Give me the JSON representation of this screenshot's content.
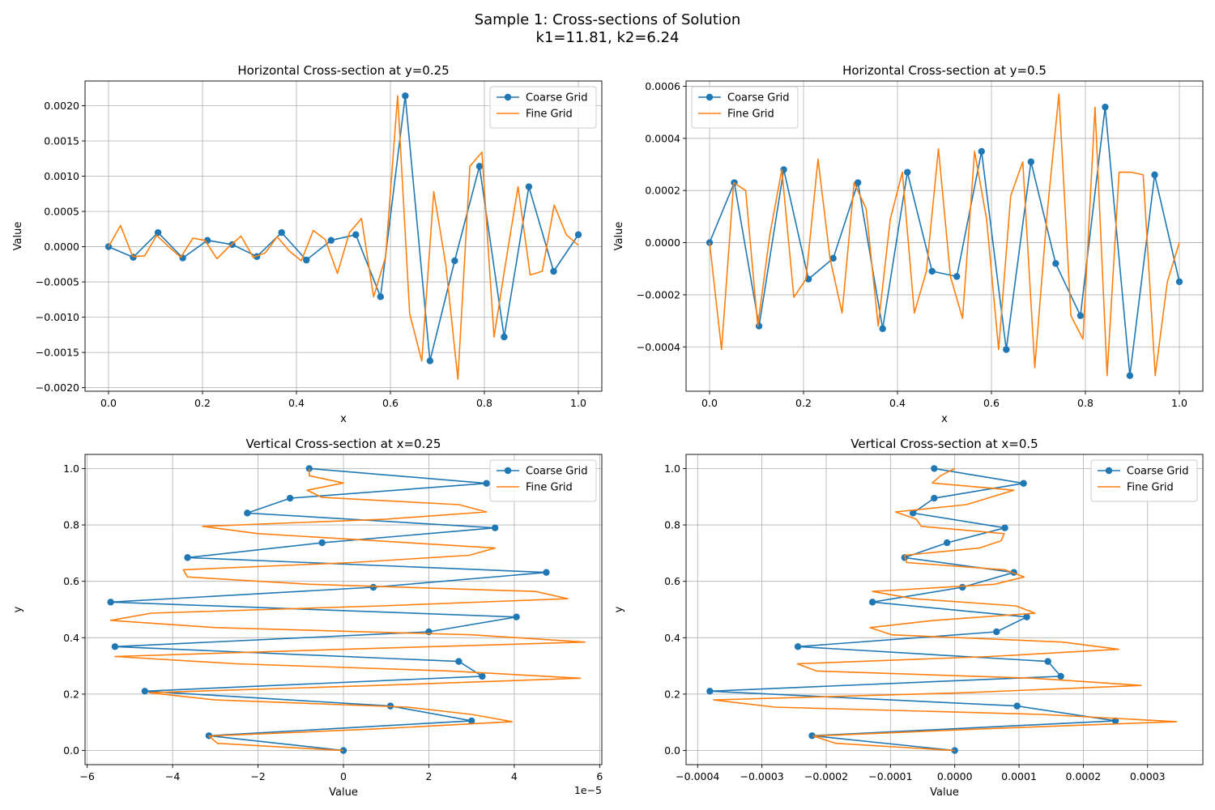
{
  "figure": {
    "title_line1": "Sample 1: Cross-sections of Solution",
    "title_line2": "k1=11.81, k2=6.24",
    "colors": {
      "coarse": "#1f77b4",
      "fine": "#ff7f0e",
      "grid": "#b0b0b0"
    }
  },
  "chart_data": [
    {
      "type": "line",
      "title": "Horizontal Cross-section at y=0.25",
      "xlabel": "x",
      "ylabel": "Value",
      "orientation": "horizontal",
      "xlim": [
        -0.05,
        1.05
      ],
      "ylim": [
        -0.00205,
        0.00235
      ],
      "xticks": [
        0.0,
        0.2,
        0.4,
        0.6,
        0.8,
        1.0
      ],
      "xtick_labels": [
        "0.0",
        "0.2",
        "0.4",
        "0.6",
        "0.8",
        "1.0"
      ],
      "yticks": [
        -0.002,
        -0.0015,
        -0.001,
        -0.0005,
        0.0,
        0.0005,
        0.001,
        0.0015,
        0.002
      ],
      "ytick_labels": [
        "−0.0020",
        "−0.0015",
        "−0.0010",
        "−0.0005",
        "0.0000",
        "0.0005",
        "0.0010",
        "0.0015",
        "0.0020"
      ],
      "axis_multiplier": "",
      "grid": true,
      "legend_position": "upper right",
      "series": [
        {
          "name": "Coarse Grid",
          "color": "#1f77b4",
          "marker": "o",
          "x": [
            0.0,
            0.0526,
            0.1053,
            0.1579,
            0.2105,
            0.2632,
            0.3158,
            0.3684,
            0.4211,
            0.4737,
            0.5263,
            0.5789,
            0.6316,
            0.6842,
            0.7368,
            0.7895,
            0.8421,
            0.8947,
            0.9474,
            1.0
          ],
          "y": [
            0.0,
            -0.00015,
            0.0002,
            -0.00016,
            9e-05,
            3e-05,
            -0.00014,
            0.0002,
            -0.00019,
            9e-05,
            0.00017,
            -0.00071,
            0.00214,
            -0.00162,
            -0.0002,
            0.00114,
            -0.00128,
            0.00085,
            -0.00035,
            0.00017
          ]
        },
        {
          "name": "Fine Grid",
          "color": "#ff7f0e",
          "marker": "",
          "x": [
            0.0,
            0.0256,
            0.0513,
            0.0769,
            0.1026,
            0.1282,
            0.1538,
            0.1795,
            0.2051,
            0.2308,
            0.2564,
            0.2821,
            0.3077,
            0.3333,
            0.359,
            0.3846,
            0.4103,
            0.4359,
            0.4615,
            0.4872,
            0.5128,
            0.5385,
            0.5641,
            0.5897,
            0.6154,
            0.641,
            0.6667,
            0.6923,
            0.7179,
            0.7436,
            0.7692,
            0.7949,
            0.8205,
            0.8462,
            0.8718,
            0.8974,
            0.9231,
            0.9487,
            0.9744,
            1.0
          ],
          "y": [
            0.0,
            0.0003,
            -0.00014,
            -0.00013,
            0.00016,
            0.0,
            -0.00015,
            0.00012,
            9e-05,
            -0.00017,
            0.0,
            0.00015,
            -0.00015,
            -9e-05,
            0.00014,
            -6e-05,
            -0.0002,
            0.00023,
            0.0001,
            -0.00038,
            0.0002,
            0.0004,
            -0.00071,
            -0.00015,
            0.00214,
            -0.00095,
            -0.00162,
            0.00078,
            -0.00026,
            -0.00188,
            0.00114,
            0.00134,
            -0.00128,
            -0.00019,
            0.00085,
            -0.0004,
            -0.00035,
            0.00059,
            0.00017,
            2e-05
          ]
        }
      ]
    },
    {
      "type": "line",
      "title": "Horizontal Cross-section at y=0.5",
      "xlabel": "x",
      "ylabel": "Value",
      "orientation": "horizontal",
      "xlim": [
        -0.05,
        1.05
      ],
      "ylim": [
        -0.00057,
        0.00062
      ],
      "xticks": [
        0.0,
        0.2,
        0.4,
        0.6,
        0.8,
        1.0
      ],
      "xtick_labels": [
        "0.0",
        "0.2",
        "0.4",
        "0.6",
        "0.8",
        "1.0"
      ],
      "yticks": [
        -0.0004,
        -0.0002,
        0.0,
        0.0002,
        0.0004,
        0.0006
      ],
      "ytick_labels": [
        "−0.0004",
        "−0.0002",
        "0.0000",
        "0.0002",
        "0.0004",
        "0.0006"
      ],
      "axis_multiplier": "",
      "grid": true,
      "legend_position": "upper left",
      "series": [
        {
          "name": "Coarse Grid",
          "color": "#1f77b4",
          "marker": "o",
          "x": [
            0.0,
            0.0526,
            0.1053,
            0.1579,
            0.2105,
            0.2632,
            0.3158,
            0.3684,
            0.4211,
            0.4737,
            0.5263,
            0.5789,
            0.6316,
            0.6842,
            0.7368,
            0.7895,
            0.8421,
            0.8947,
            0.9474,
            1.0
          ],
          "y": [
            0.0,
            0.00023,
            -0.00032,
            0.00028,
            -0.00014,
            -6e-05,
            0.00023,
            -0.00033,
            0.00027,
            -0.00011,
            -0.00013,
            0.00035,
            -0.00041,
            0.00031,
            -8e-05,
            -0.00028,
            0.00052,
            -0.00051,
            0.00026,
            -0.00015
          ]
        },
        {
          "name": "Fine Grid",
          "color": "#ff7f0e",
          "marker": "",
          "x": [
            0.0,
            0.0256,
            0.0513,
            0.0769,
            0.1026,
            0.1282,
            0.1538,
            0.1795,
            0.2051,
            0.2308,
            0.2564,
            0.2821,
            0.3077,
            0.3333,
            0.359,
            0.3846,
            0.4103,
            0.4359,
            0.4615,
            0.4872,
            0.5128,
            0.5385,
            0.5641,
            0.5897,
            0.6154,
            0.641,
            0.6667,
            0.6923,
            0.7179,
            0.7436,
            0.7692,
            0.7949,
            0.8205,
            0.8462,
            0.8718,
            0.8974,
            0.9231,
            0.9487,
            0.9744,
            1.0
          ],
          "y": [
            0.0,
            -0.00041,
            0.00023,
            0.0002,
            -0.00032,
            3e-05,
            0.00028,
            -0.00021,
            -0.00014,
            0.00032,
            -6e-05,
            -0.00027,
            0.00023,
            0.00013,
            -0.00032,
            9e-05,
            0.00027,
            -0.00027,
            -0.00011,
            0.00036,
            -0.00013,
            -0.00029,
            0.00035,
            9e-05,
            -0.00041,
            0.00018,
            0.00031,
            -0.00048,
            0.0001,
            0.00057,
            -0.00028,
            -0.00037,
            0.00052,
            -0.00051,
            0.00027,
            0.00027,
            0.00026,
            -0.00051,
            -0.00015,
            0.0
          ]
        }
      ]
    },
    {
      "type": "line",
      "title": "Vertical Cross-section at x=0.25",
      "xlabel": "Value",
      "ylabel": "y",
      "orientation": "vertical",
      "xlim": [
        -6.05e-05,
        6.05e-05
      ],
      "ylim": [
        -0.05,
        1.05
      ],
      "xticks": [
        -6e-05,
        -4e-05,
        -2e-05,
        0.0,
        2e-05,
        4e-05,
        6e-05
      ],
      "xtick_labels": [
        "−6",
        "−4",
        "−2",
        "0",
        "2",
        "4",
        "6"
      ],
      "yticks": [
        0.0,
        0.2,
        0.4,
        0.6,
        0.8,
        1.0
      ],
      "ytick_labels": [
        "0.0",
        "0.2",
        "0.4",
        "0.6",
        "0.8",
        "1.0"
      ],
      "axis_multiplier": "1e−5",
      "grid": true,
      "legend_position": "upper right",
      "series": [
        {
          "name": "Coarse Grid",
          "color": "#1f77b4",
          "marker": "o",
          "y": [
            0.0,
            0.0526,
            0.1053,
            0.1579,
            0.2105,
            0.2632,
            0.3158,
            0.3684,
            0.4211,
            0.4737,
            0.5263,
            0.5789,
            0.6316,
            0.6842,
            0.7368,
            0.7895,
            0.8421,
            0.8947,
            0.9474,
            1.0
          ],
          "x": [
            0.0,
            -3.15e-05,
            3e-05,
            1.1e-05,
            -4.65e-05,
            3.25e-05,
            2.7e-05,
            -5.35e-05,
            2e-05,
            4.05e-05,
            -5.45e-05,
            7e-06,
            4.75e-05,
            -3.65e-05,
            -5e-06,
            3.55e-05,
            -2.25e-05,
            -1.25e-05,
            3.35e-05,
            -8e-06
          ]
        },
        {
          "name": "Fine Grid",
          "color": "#ff7f0e",
          "marker": "",
          "y": [
            0.0,
            0.0256,
            0.0513,
            0.0769,
            0.1026,
            0.1282,
            0.1538,
            0.1795,
            0.2051,
            0.2308,
            0.2564,
            0.2821,
            0.3077,
            0.3333,
            0.359,
            0.3846,
            0.4103,
            0.4359,
            0.4615,
            0.4872,
            0.5128,
            0.5385,
            0.5641,
            0.5897,
            0.6154,
            0.641,
            0.6667,
            0.6923,
            0.7179,
            0.7436,
            0.7692,
            0.7949,
            0.8205,
            0.8462,
            0.8718,
            0.8974,
            0.9231,
            0.9487,
            0.9744,
            1.0
          ],
          "x": [
            0.0,
            -2.95e-05,
            -3.15e-05,
            8e-06,
            3.95e-05,
            3e-05,
            1.5e-05,
            -3e-05,
            -4.55e-05,
            8e-06,
            5.55e-05,
            2.5e-05,
            -2.5e-05,
            -5.35e-05,
            0.0,
            5.65e-05,
            3e-05,
            -3e-05,
            -5.45e-05,
            -4.5e-05,
            9e-06,
            5.25e-05,
            4.5e-05,
            -8e-06,
            -3.65e-05,
            -3.75e-05,
            2e-06,
            2.95e-05,
            3.55e-05,
            8e-06,
            -2e-05,
            -3.3e-05,
            1e-05,
            3.35e-05,
            2.7e-05,
            -5e-06,
            -8.5e-06,
            0.0,
            -8e-06,
            -8e-06
          ]
        }
      ]
    },
    {
      "type": "line",
      "title": "Vertical Cross-section at x=0.5",
      "xlabel": "Value",
      "ylabel": "y",
      "orientation": "vertical",
      "xlim": [
        -0.000418,
        0.000386
      ],
      "ylim": [
        -0.05,
        1.05
      ],
      "xticks": [
        -0.0004,
        -0.0003,
        -0.0002,
        -0.0001,
        0.0,
        0.0001,
        0.0002,
        0.0003
      ],
      "xtick_labels": [
        "−0.0004",
        "−0.0003",
        "−0.0002",
        "−0.0001",
        "0.0000",
        "0.0001",
        "0.0002",
        "0.0003"
      ],
      "yticks": [
        0.0,
        0.2,
        0.4,
        0.6,
        0.8,
        1.0
      ],
      "ytick_labels": [
        "0.0",
        "0.2",
        "0.4",
        "0.6",
        "0.8",
        "1.0"
      ],
      "axis_multiplier": "",
      "grid": true,
      "legend_position": "upper right",
      "series": [
        {
          "name": "Coarse Grid",
          "color": "#1f77b4",
          "marker": "o",
          "y": [
            0.0,
            0.0526,
            0.1053,
            0.1579,
            0.2105,
            0.2632,
            0.3158,
            0.3684,
            0.4211,
            0.4737,
            0.5263,
            0.5789,
            0.6316,
            0.6842,
            0.7368,
            0.7895,
            0.8421,
            0.8947,
            0.9474,
            1.0
          ],
          "x": [
            0.0,
            -0.000222,
            0.00025,
            9.7e-05,
            -0.000381,
            0.000165,
            0.000145,
            -0.000244,
            6.5e-05,
            0.000112,
            -0.000128,
            1.2e-05,
            9.2e-05,
            -7.8e-05,
            -1.2e-05,
            7.8e-05,
            -6.5e-05,
            -3.2e-05,
            0.000107,
            -3.2e-05
          ]
        },
        {
          "name": "Fine Grid",
          "color": "#ff7f0e",
          "marker": "",
          "y": [
            0.0,
            0.0256,
            0.0513,
            0.0769,
            0.1026,
            0.1282,
            0.1538,
            0.1795,
            0.2051,
            0.2308,
            0.2564,
            0.2821,
            0.3077,
            0.3333,
            0.359,
            0.3846,
            0.4103,
            0.4359,
            0.4615,
            0.4872,
            0.5128,
            0.5385,
            0.5641,
            0.5897,
            0.6154,
            0.641,
            0.6667,
            0.6923,
            0.7179,
            0.7436,
            0.7692,
            0.7949,
            0.8205,
            0.8462,
            0.8718,
            0.8974,
            0.9231,
            0.9487,
            0.9744,
            1.0
          ],
          "x": [
            0.0,
            -0.000185,
            -0.00022,
            4.5e-05,
            0.000345,
            0.000135,
            -0.00028,
            -0.000375,
            1.5e-05,
            0.00029,
            0.000122,
            -0.000215,
            -0.000245,
            5.5e-05,
            0.000255,
            0.000168,
            -9.8e-05,
            -0.000132,
            -3.2e-05,
            0.000125,
            9.5e-05,
            -6.5e-05,
            -0.000128,
            6.2e-05,
            0.000108,
            7.8e-05,
            -7.5e-05,
            -7.8e-05,
            3.8e-05,
            7.2e-05,
            7.7e-05,
            -5.2e-05,
            -6e-05,
            -9.2e-05,
            1.8e-05,
            5.5e-05,
            9.2e-05,
            -3.5e-05,
            -2.2e-05,
            0.0
          ]
        }
      ]
    }
  ]
}
